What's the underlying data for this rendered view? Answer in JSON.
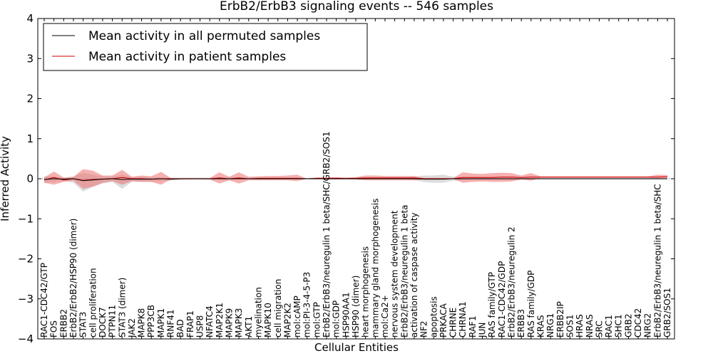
{
  "chart_data": {
    "type": "line",
    "title": "ErbB2/ErbB3 signaling events -- 546 samples",
    "xlabel": "Cellular Entities",
    "ylabel": "Inferred Activity",
    "ylim": [
      -4,
      4
    ],
    "yticks": [
      -4,
      -3,
      -2,
      -1,
      0,
      1,
      2,
      3,
      4
    ],
    "grid": false,
    "legend_position": "top-left",
    "categories": [
      "RAC1-CDC42/GTP",
      "FOS",
      "ERBB2",
      "ErbB2/ErbB2/HSP90 (dimer)",
      "STAT3",
      "cell proliferation",
      "DOCK7",
      "PTPN11",
      "STAT3 (dimer)",
      "JAK2",
      "MAPK8",
      "PPP3CB",
      "MAPK1",
      "RNF41",
      "BAD",
      "FRAP1",
      "USP8",
      "NFATC4",
      "MAP2K1",
      "MAPK9",
      "MAPK3",
      "AKT1",
      "myelination",
      "MAPK10",
      "cell migration",
      "MAP2K2",
      "mol:cAMP",
      "mol:PI-3-4-5-P3",
      "mol:GTP",
      "ErbB2/ErbB3/neuregulin 1 beta/SHC/GRB2/SOS1",
      "mol:GDP",
      "HSP90AA1",
      "HSP90 (dimer)",
      "heart morphogenesis",
      "mammary gland morphogenesis",
      "mol:Ca2+",
      "nervous system development",
      "ErbB2/ErbB3/neuregulin 1 beta",
      "activation of caspase activity",
      "NF2",
      "apoptosis",
      "PRKACA",
      "CHRNE",
      "CHRNA1",
      "RAF1",
      "JUN",
      "RAS family/GTP",
      "RAC1-CDC42/GDP",
      "ErbB2/ErbB3/neuregulin 2",
      "ERBB3",
      "RAS family/GDP",
      "KRAS",
      "NRG1",
      "ERBB2IP",
      "SOS1",
      "HRAS",
      "NRAS",
      "SRC",
      "RAC1",
      "SHC1",
      "GRB2",
      "CDC42",
      "NRG2",
      "ErbB2/ErbB3/neuregulin 1 beta/SHC",
      "GRB2/SOS1"
    ],
    "series": [
      {
        "name": "Mean activity in all permuted samples",
        "color": "#000000",
        "band_color": "#b0b0b0",
        "mean": [
          -0.02,
          0.0,
          -0.01,
          0.0,
          -0.05,
          -0.03,
          -0.01,
          0.0,
          -0.02,
          -0.01,
          -0.01,
          -0.01,
          0.0,
          -0.01,
          0.0,
          0.0,
          0.0,
          0.0,
          0.0,
          0.0,
          0.0,
          0.0,
          0.0,
          0.0,
          0.0,
          0.0,
          0.0,
          0.0,
          0.0,
          0.0,
          0.0,
          0.0,
          0.0,
          0.0,
          0.0,
          0.0,
          0.0,
          0.0,
          0.0,
          -0.01,
          -0.01,
          -0.01,
          0.0,
          0.0,
          0.0,
          0.0,
          0.0,
          0.0,
          0.0,
          0.0,
          0.0,
          0.0,
          0.0,
          0.0,
          0.0,
          0.0,
          0.0,
          0.0,
          0.0,
          0.0,
          0.0,
          0.0,
          0.0,
          0.0,
          0.0
        ],
        "upper": [
          0.06,
          0.06,
          0.02,
          0.05,
          0.15,
          0.1,
          0.06,
          0.05,
          0.1,
          0.04,
          0.05,
          0.04,
          0.03,
          0.02,
          0.02,
          0.02,
          0.02,
          0.02,
          0.03,
          0.03,
          0.03,
          0.02,
          0.02,
          0.02,
          0.02,
          0.02,
          0.02,
          0.02,
          0.02,
          0.02,
          0.02,
          0.02,
          0.02,
          0.02,
          0.02,
          0.02,
          0.02,
          0.02,
          0.05,
          0.08,
          0.08,
          0.1,
          0.05,
          0.04,
          0.03,
          0.03,
          0.03,
          0.03,
          0.03,
          0.02,
          0.02,
          0.02,
          0.02,
          0.02,
          0.02,
          0.02,
          0.02,
          0.02,
          0.02,
          0.02,
          0.02,
          0.02,
          0.02,
          0.02,
          0.02
        ],
        "lower": [
          -0.1,
          -0.08,
          -0.05,
          -0.1,
          -0.32,
          -0.2,
          -0.12,
          -0.08,
          -0.25,
          -0.08,
          -0.08,
          -0.07,
          -0.06,
          -0.05,
          -0.03,
          -0.02,
          -0.02,
          -0.03,
          -0.04,
          -0.04,
          -0.03,
          -0.02,
          -0.02,
          -0.02,
          -0.02,
          -0.02,
          -0.02,
          -0.02,
          -0.02,
          -0.02,
          -0.02,
          -0.02,
          -0.02,
          -0.02,
          -0.02,
          -0.02,
          -0.02,
          -0.02,
          -0.04,
          -0.08,
          -0.1,
          -0.1,
          -0.05,
          -0.04,
          -0.03,
          -0.03,
          -0.03,
          -0.03,
          -0.03,
          -0.02,
          -0.02,
          -0.02,
          -0.02,
          -0.02,
          -0.02,
          -0.02,
          -0.02,
          -0.02,
          -0.02,
          -0.02,
          -0.02,
          -0.02,
          -0.02,
          -0.02,
          -0.02
        ]
      },
      {
        "name": "Mean activity in patient samples",
        "color": "#cc0000",
        "band_color": "#ee7070",
        "mean": [
          -0.03,
          0.03,
          -0.03,
          0.0,
          -0.04,
          -0.02,
          -0.01,
          0.0,
          0.03,
          0.0,
          0.0,
          -0.01,
          0.0,
          0.0,
          0.0,
          0.0,
          0.0,
          0.0,
          0.02,
          0.0,
          0.02,
          0.0,
          0.01,
          0.01,
          0.01,
          0.01,
          0.01,
          0.0,
          0.01,
          0.01,
          0.01,
          0.01,
          0.01,
          0.02,
          0.02,
          0.02,
          0.02,
          0.02,
          0.02,
          0.0,
          0.0,
          0.0,
          0.0,
          0.03,
          0.03,
          0.03,
          0.03,
          0.04,
          0.04,
          0.03,
          0.04,
          0.04,
          0.04,
          0.04,
          0.04,
          0.04,
          0.04,
          0.04,
          0.04,
          0.04,
          0.04,
          0.04,
          0.04,
          0.04,
          0.05
        ],
        "upper": [
          0.03,
          0.18,
          0.03,
          0.05,
          0.24,
          0.2,
          0.08,
          0.08,
          0.22,
          0.05,
          0.08,
          0.06,
          0.17,
          0.02,
          0.02,
          0.02,
          0.02,
          0.02,
          0.16,
          0.05,
          0.16,
          0.05,
          0.06,
          0.07,
          0.07,
          0.08,
          0.1,
          0.0,
          0.03,
          0.03,
          0.04,
          0.02,
          0.04,
          0.08,
          0.08,
          0.07,
          0.07,
          0.07,
          0.07,
          0.02,
          0.02,
          0.02,
          0.02,
          0.16,
          0.13,
          0.12,
          0.14,
          0.15,
          0.14,
          0.08,
          0.14,
          0.06,
          0.06,
          0.06,
          0.06,
          0.06,
          0.06,
          0.06,
          0.06,
          0.06,
          0.06,
          0.06,
          0.06,
          0.1,
          0.09
        ],
        "lower": [
          -0.1,
          -0.15,
          -0.08,
          -0.05,
          -0.25,
          -0.2,
          -0.1,
          -0.06,
          -0.15,
          -0.06,
          -0.08,
          -0.08,
          -0.15,
          -0.02,
          -0.02,
          -0.02,
          -0.02,
          -0.02,
          -0.12,
          -0.04,
          -0.12,
          -0.04,
          -0.04,
          -0.04,
          -0.04,
          -0.04,
          -0.06,
          0.0,
          -0.01,
          -0.01,
          -0.02,
          -0.01,
          -0.02,
          -0.04,
          -0.04,
          -0.04,
          -0.04,
          -0.04,
          -0.04,
          -0.01,
          -0.01,
          -0.01,
          -0.01,
          -0.1,
          -0.08,
          -0.07,
          -0.08,
          -0.08,
          -0.07,
          -0.02,
          -0.05,
          0.02,
          0.02,
          0.02,
          0.02,
          0.02,
          0.02,
          0.02,
          0.02,
          0.02,
          0.02,
          0.02,
          0.02,
          0.01,
          0.02
        ]
      }
    ]
  }
}
